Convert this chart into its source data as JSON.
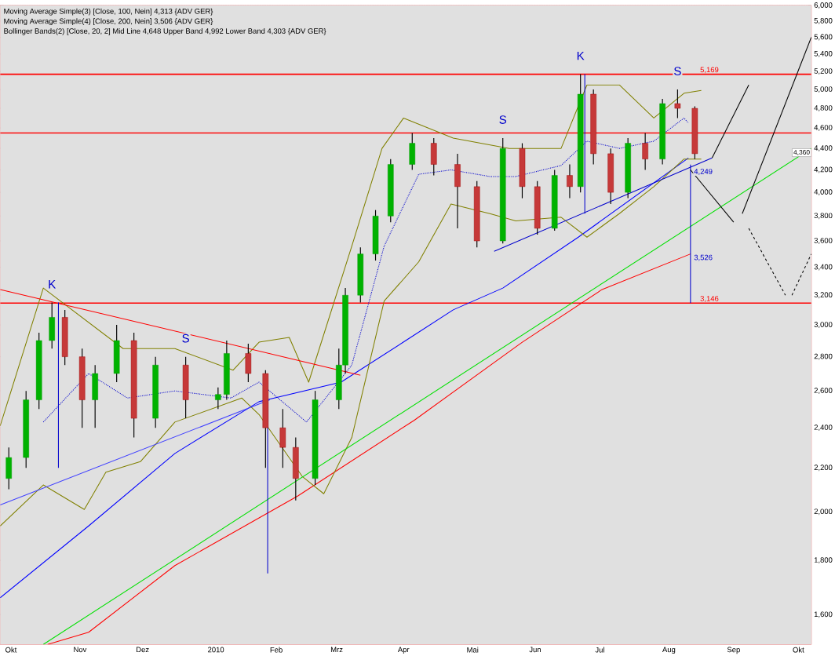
{
  "chart_data": {
    "type": "candlestick",
    "log": "y",
    "grid": true,
    "xlim": [
      "2009-09-26",
      "2010-10-07"
    ],
    "xticks": [
      {
        "value": "2009-10-01",
        "label": "Okt"
      },
      {
        "value": "2009-11-02",
        "label": "Nov"
      },
      {
        "value": "2009-12-01",
        "label": "Dez"
      },
      {
        "value": "2010-01-04",
        "label": "2010"
      },
      {
        "value": "2010-02-01",
        "label": "Feb"
      },
      {
        "value": "2010-03-01",
        "label": "Mrz"
      },
      {
        "value": "2010-04-01",
        "label": "Apr"
      },
      {
        "value": "2010-05-03",
        "label": "Mai"
      },
      {
        "value": "2010-06-01",
        "label": "Jun"
      },
      {
        "value": "2010-07-01",
        "label": "Jul"
      },
      {
        "value": "2010-08-02",
        "label": "Aug"
      },
      {
        "value": "2010-09-01",
        "label": "Sep"
      },
      {
        "value": "2010-10-01",
        "label": "Okt"
      }
    ],
    "ylim": [
      1500,
      6000
    ],
    "yticks": [
      {
        "value": 1600,
        "label": "1,600"
      },
      {
        "value": 1800,
        "label": "1,800"
      },
      {
        "value": 2000,
        "label": "2,000"
      },
      {
        "value": 2200,
        "label": "2,200"
      },
      {
        "value": 2400,
        "label": "2,400"
      },
      {
        "value": 2600,
        "label": "2,600"
      },
      {
        "value": 2800,
        "label": "2,800"
      },
      {
        "value": 3000,
        "label": "3,000"
      },
      {
        "value": 3200,
        "label": "3,200"
      },
      {
        "value": 3400,
        "label": "3,400"
      },
      {
        "value": 3600,
        "label": "3,600"
      },
      {
        "value": 3800,
        "label": "3,800"
      },
      {
        "value": 4000,
        "label": "4,000"
      },
      {
        "value": 4200,
        "label": "4,200"
      },
      {
        "value": 4400,
        "label": "4,400"
      },
      {
        "value": 4600,
        "label": "4,600"
      },
      {
        "value": 4800,
        "label": "4,800"
      },
      {
        "value": 5000,
        "label": "5,000"
      },
      {
        "value": 5200,
        "label": "5,200"
      },
      {
        "value": 5400,
        "label": "5,400"
      },
      {
        "value": 5600,
        "label": "5,600"
      },
      {
        "value": 5800,
        "label": "5,800"
      },
      {
        "value": 6000,
        "label": "6,000"
      }
    ],
    "x": [
      "2009-09-30",
      "2009-10-08",
      "2009-10-14",
      "2009-10-20",
      "2009-10-26",
      "2009-11-03",
      "2009-11-09",
      "2009-11-19",
      "2009-11-27",
      "2009-12-07",
      "2009-12-21",
      "2010-01-05",
      "2010-01-09",
      "2010-01-19",
      "2010-01-27",
      "2010-02-04",
      "2010-02-10",
      "2010-02-19",
      "2010-03-02",
      "2010-03-05",
      "2010-03-12",
      "2010-03-19",
      "2010-03-26",
      "2010-04-05",
      "2010-04-15",
      "2010-04-26",
      "2010-05-05",
      "2010-05-17",
      "2010-05-26",
      "2010-06-02",
      "2010-06-10",
      "2010-06-17",
      "2010-06-22",
      "2010-06-28",
      "2010-07-06",
      "2010-07-14",
      "2010-07-22",
      "2010-07-30",
      "2010-08-06",
      "2010-08-14"
    ],
    "ohlc": [
      [
        2150,
        2300,
        2100,
        2250
      ],
      [
        2250,
        2600,
        2200,
        2550
      ],
      [
        2550,
        2950,
        2500,
        2900
      ],
      [
        2900,
        3150,
        2850,
        3050
      ],
      [
        3050,
        3100,
        2750,
        2800
      ],
      [
        2800,
        2850,
        2400,
        2550
      ],
      [
        2550,
        2750,
        2400,
        2700
      ],
      [
        2700,
        3000,
        2650,
        2900
      ],
      [
        2900,
        2950,
        2350,
        2450
      ],
      [
        2450,
        2800,
        2400,
        2750
      ],
      [
        2750,
        2800,
        2450,
        2550
      ],
      [
        2550,
        2620,
        2500,
        2580
      ],
      [
        2580,
        2900,
        2550,
        2820
      ],
      [
        2820,
        2880,
        2650,
        2700
      ],
      [
        2700,
        2720,
        2200,
        2400
      ],
      [
        2400,
        2500,
        2200,
        2300
      ],
      [
        2300,
        2350,
        2050,
        2150
      ],
      [
        2150,
        2600,
        2120,
        2550
      ],
      [
        2550,
        2850,
        2500,
        2750
      ],
      [
        2750,
        3250,
        2700,
        3200
      ],
      [
        3200,
        3550,
        3150,
        3500
      ],
      [
        3500,
        3850,
        3450,
        3800
      ],
      [
        3800,
        4300,
        3750,
        4250
      ],
      [
        4250,
        4550,
        4200,
        4450
      ],
      [
        4450,
        4500,
        4150,
        4250
      ],
      [
        4250,
        4350,
        3700,
        4050
      ],
      [
        4050,
        4100,
        3550,
        3600
      ],
      [
        3600,
        4500,
        3580,
        4400
      ],
      [
        4400,
        4450,
        3950,
        4050
      ],
      [
        4050,
        4100,
        3650,
        3700
      ],
      [
        3700,
        4200,
        3680,
        4150
      ],
      [
        4150,
        4250,
        3950,
        4050
      ],
      [
        4050,
        5170,
        4000,
        4950
      ],
      [
        4950,
        5000,
        4250,
        4350
      ],
      [
        4350,
        4400,
        3900,
        4000
      ],
      [
        4000,
        4500,
        3950,
        4450
      ],
      [
        4450,
        4550,
        4200,
        4300
      ],
      [
        4300,
        4900,
        4250,
        4850
      ],
      [
        4850,
        5000,
        4700,
        4800
      ],
      [
        4800,
        4820,
        4300,
        4350
      ]
    ],
    "series": [
      {
        "type": "line",
        "color": "#0000ff",
        "line_style": "solid",
        "x": [
          "2009-09-26",
          "2009-11-06",
          "2009-12-16",
          "2010-01-24",
          "2010-03-03",
          "2010-04-02",
          "2010-04-24",
          "2010-05-17",
          "2010-06-21",
          "2010-08-11"
        ],
        "values": [
          1660,
          1940,
          2270,
          2540,
          2650,
          2900,
          3100,
          3250,
          3630,
          4310
        ]
      },
      {
        "type": "line",
        "color": "#ff0000",
        "line_style": "solid",
        "x": [
          "2009-10-18",
          "2009-11-06",
          "2009-12-16",
          "2010-02-11",
          "2010-04-06",
          "2010-05-26",
          "2010-07-02",
          "2010-08-12"
        ],
        "values": [
          1500,
          1540,
          1780,
          2070,
          2440,
          2890,
          3240,
          3500
        ]
      },
      {
        "type": "line",
        "color": "#808000",
        "line_style": "solid",
        "x": [
          "2009-09-26",
          "2009-10-16",
          "2009-11-22",
          "2009-12-16",
          "2010-01-12",
          "2010-01-24",
          "2010-02-07",
          "2010-02-16",
          "2010-03-08",
          "2010-03-22",
          "2010-04-01",
          "2010-04-24",
          "2010-05-20",
          "2010-06-13",
          "2010-06-25",
          "2010-07-10",
          "2010-07-26",
          "2010-08-09",
          "2010-08-17"
        ],
        "values": [
          2410,
          3250,
          2850,
          2850,
          2720,
          2890,
          2920,
          2650,
          3560,
          4400,
          4700,
          4500,
          4400,
          4400,
          5050,
          5050,
          4700,
          4960,
          4990
        ]
      },
      {
        "type": "line",
        "color": "#808000",
        "line_style": "solid",
        "x": [
          "2009-09-26",
          "2009-10-16",
          "2009-11-04",
          "2009-11-14",
          "2009-11-30",
          "2009-12-16",
          "2010-01-16",
          "2010-01-24",
          "2010-02-13",
          "2010-02-23",
          "2010-03-08",
          "2010-03-23",
          "2010-04-08",
          "2010-04-23",
          "2010-05-11",
          "2010-05-23",
          "2010-06-13",
          "2010-06-25",
          "2010-07-10",
          "2010-07-26",
          "2010-08-09",
          "2010-08-17"
        ],
        "values": [
          1940,
          2120,
          2010,
          2180,
          2230,
          2430,
          2560,
          2470,
          2160,
          2080,
          2350,
          3160,
          3440,
          3900,
          3820,
          3760,
          3790,
          3630,
          3820,
          4050,
          4300,
          4300
        ]
      },
      {
        "type": "line",
        "color": "#0000cc",
        "line_style": "dotted",
        "x": [
          "2009-10-16",
          "2009-11-06",
          "2009-11-24",
          "2009-12-16",
          "2010-01-11",
          "2010-01-24",
          "2010-02-15",
          "2010-03-08",
          "2010-03-23",
          "2010-04-08",
          "2010-04-23",
          "2010-05-11",
          "2010-05-23",
          "2010-06-13",
          "2010-06-25",
          "2010-07-10",
          "2010-07-26",
          "2010-08-09",
          "2010-08-11"
        ],
        "values": [
          2430,
          2700,
          2560,
          2600,
          2560,
          2650,
          2430,
          2750,
          3560,
          4160,
          4200,
          4140,
          4140,
          4240,
          4470,
          4400,
          4470,
          4700,
          4650
        ]
      },
      {
        "type": "line",
        "color": "#ff0000",
        "line_style": "solid",
        "x": [
          "2009-09-26",
          "2010-03-12"
        ],
        "values": [
          3240,
          2690
        ]
      },
      {
        "type": "line",
        "color": "#4040ff",
        "line_style": "solid",
        "x": [
          "2009-09-26",
          "2010-01-29"
        ],
        "values": [
          2030,
          2550
        ]
      },
      {
        "type": "line",
        "color": "#0000cc",
        "line_style": "solid",
        "x": [
          "2010-05-13",
          "2010-08-22"
        ],
        "values": [
          3520,
          4310
        ]
      },
      {
        "type": "line",
        "color": "#00e000",
        "line_style": "solid",
        "x": [
          "2009-10-16",
          "2010-10-07"
        ],
        "values": [
          1500,
          4400
        ]
      },
      {
        "type": "line",
        "color": "#0000cc",
        "line_style": "solid",
        "x": [
          "2009-10-23",
          "2009-10-23"
        ],
        "values": [
          3150,
          2200
        ]
      },
      {
        "type": "line",
        "color": "#0000cc",
        "line_style": "solid",
        "x": [
          "2010-01-28",
          "2010-01-28"
        ],
        "values": [
          2550,
          1750
        ]
      },
      {
        "type": "line",
        "color": "#0000cc",
        "line_style": "solid",
        "x": [
          "2010-06-24",
          "2010-06-24"
        ],
        "values": [
          5170,
          3820
        ]
      },
      {
        "type": "line",
        "color": "#0000cc",
        "line_style": "solid",
        "x": [
          "2010-08-12",
          "2010-08-12"
        ],
        "values": [
          4249,
          3146
        ]
      },
      {
        "type": "line",
        "color": "#000000",
        "line_style": "solid",
        "x": [
          "2010-08-22",
          "2010-09-08"
        ],
        "values": [
          4310,
          5050
        ]
      },
      {
        "type": "line",
        "color": "#000000",
        "line_style": "solid",
        "x": [
          "2010-08-12",
          "2010-09-01"
        ],
        "values": [
          4200,
          3750
        ]
      },
      {
        "type": "line",
        "color": "#000000",
        "line_style": "solid",
        "x": [
          "2010-09-05",
          "2010-10-07"
        ],
        "values": [
          3820,
          5600
        ]
      },
      {
        "type": "line",
        "color": "#000000",
        "line_style": "dashed",
        "x": [
          "2010-09-08",
          "2010-09-25"
        ],
        "values": [
          3700,
          3200
        ]
      },
      {
        "type": "line",
        "color": "#000000",
        "line_style": "dashed",
        "x": [
          "2010-09-28",
          "2010-10-07"
        ],
        "values": [
          3200,
          3500
        ]
      }
    ],
    "ref_lines": [
      {
        "axis": "y",
        "value": 4550,
        "color": "#ff0000"
      },
      {
        "axis": "y",
        "value": 5169,
        "label": "5,169",
        "color": "#ff0000"
      },
      {
        "axis": "y",
        "value": 3146,
        "label": "3,146",
        "color": "#ff0000"
      }
    ],
    "annotations": [
      "Moving Average Simple(3) [Close, 100, Nein] 4,313 {ADV GER}",
      "Moving Average Simple(4) [Close, 200, Nein] 3,506 {ADV GER}",
      "Bollinger Bands(2) [Close, 20, 2] Mid Line 4,648 Upper Band 4,992 Lower Band 4,303 {ADV GER}",
      {
        "text": "K",
        "x": "2009-10-20",
        "y": 3150
      },
      {
        "text": "S",
        "x": "2009-12-21",
        "y": 2800
      },
      {
        "text": "S",
        "x": "2010-05-17",
        "y": 4500
      },
      {
        "text": "K",
        "x": "2010-06-22",
        "y": 5170
      },
      {
        "text": "S",
        "x": "2010-08-06",
        "y": 5000
      },
      {
        "text": "4,249",
        "x": "2010-08-12",
        "y": 4249
      },
      {
        "text": "3,526",
        "x": "2010-08-12",
        "y": 3526
      },
      {
        "text": "4,360",
        "x": "2010-10-07",
        "y": 4360
      }
    ]
  }
}
